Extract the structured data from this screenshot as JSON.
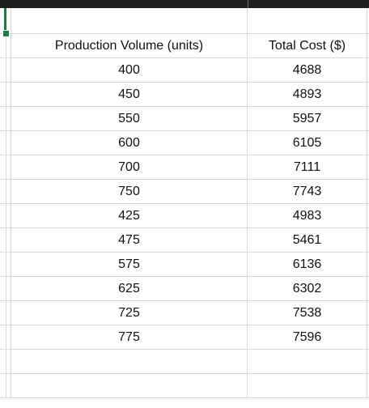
{
  "table": {
    "headers": [
      "Production Volume (units)",
      "Total Cost ($)"
    ],
    "rows": [
      [
        "400",
        "4688"
      ],
      [
        "450",
        "4893"
      ],
      [
        "550",
        "5957"
      ],
      [
        "600",
        "6105"
      ],
      [
        "700",
        "7111"
      ],
      [
        "750",
        "7743"
      ],
      [
        "425",
        "4983"
      ],
      [
        "475",
        "5461"
      ],
      [
        "575",
        "6136"
      ],
      [
        "625",
        "6302"
      ],
      [
        "725",
        "7538"
      ],
      [
        "775",
        "7596"
      ]
    ]
  },
  "colors": {
    "selection": "#1e7b45",
    "gridline": "#d9d9d9",
    "topbar": "#1f1f1f"
  }
}
